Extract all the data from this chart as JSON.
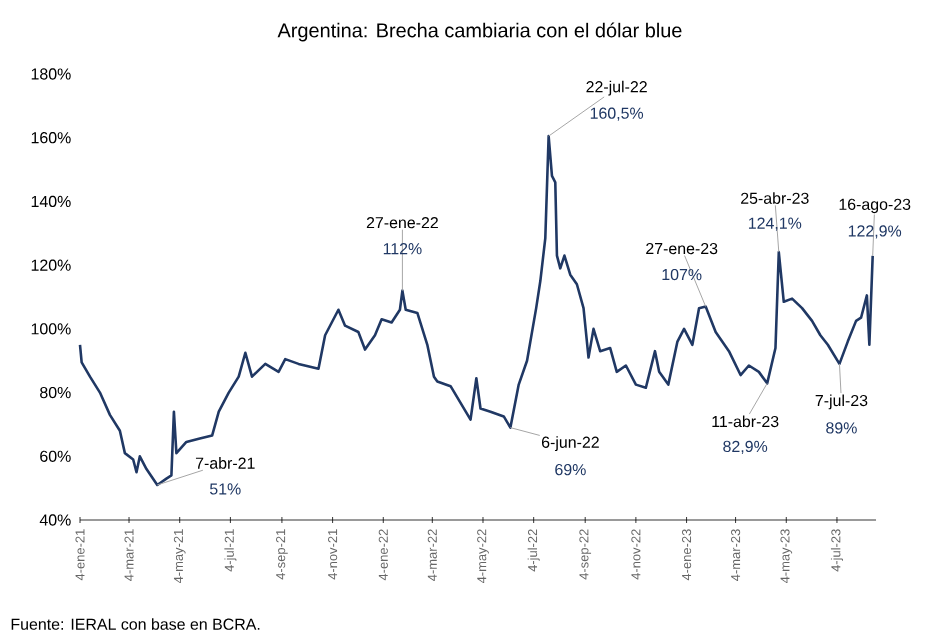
{
  "chart_data": {
    "type": "line",
    "title": "Argentina: Brecha cambiaria con el dólar blue",
    "series": [
      {
        "color": "#203864",
        "x": [
          "2021-01-04",
          "2021-01-06",
          "2021-01-16",
          "2021-01-28",
          "2021-02-09",
          "2021-02-21",
          "2021-02-27",
          "2021-03-09",
          "2021-03-13",
          "2021-03-17",
          "2021-03-25",
          "2021-04-07",
          "2021-04-18",
          "2021-04-24",
          "2021-04-27",
          "2021-04-30",
          "2021-05-12",
          "2021-05-27",
          "2021-06-12",
          "2021-06-20",
          "2021-07-02",
          "2021-07-14",
          "2021-07-22",
          "2021-07-30",
          "2021-08-15",
          "2021-08-31",
          "2021-09-08",
          "2021-09-24",
          "2021-10-18",
          "2021-10-26",
          "2021-11-11",
          "2021-11-19",
          "2021-12-05",
          "2021-12-13",
          "2021-12-25",
          "2022-01-02",
          "2022-01-14",
          "2022-01-24",
          "2022-01-27",
          "2022-01-31",
          "2022-02-14",
          "2022-02-26",
          "2022-03-06",
          "2022-03-10",
          "2022-03-26",
          "2022-04-11",
          "2022-04-19",
          "2022-04-26",
          "2022-05-01",
          "2022-05-13",
          "2022-05-29",
          "2022-06-06",
          "2022-06-16",
          "2022-06-26",
          "2022-07-07",
          "2022-07-12",
          "2022-07-18",
          "2022-07-22",
          "2022-07-26",
          "2022-07-30",
          "2022-08-01",
          "2022-08-05",
          "2022-08-10",
          "2022-08-17",
          "2022-08-25",
          "2022-09-02",
          "2022-09-08",
          "2022-09-14",
          "2022-09-22",
          "2022-10-04",
          "2022-10-12",
          "2022-10-23",
          "2022-11-04",
          "2022-11-16",
          "2022-11-27",
          "2022-12-02",
          "2022-12-13",
          "2022-12-24",
          "2023-01-01",
          "2023-01-11",
          "2023-01-19",
          "2023-01-27",
          "2023-02-08",
          "2023-02-24",
          "2023-03-10",
          "2023-03-20",
          "2023-04-01",
          "2023-04-11",
          "2023-04-21",
          "2023-04-25",
          "2023-05-01",
          "2023-05-11",
          "2023-05-23",
          "2023-06-04",
          "2023-06-14",
          "2023-06-23",
          "2023-07-07",
          "2023-07-17",
          "2023-07-27",
          "2023-08-02",
          "2023-08-09",
          "2023-08-12",
          "2023-08-16"
        ],
        "values": [
          95,
          89.5,
          85,
          80,
          73,
          68,
          61,
          59,
          55,
          60,
          56,
          51,
          53,
          54,
          74,
          61,
          64.5,
          65.5,
          66.5,
          74,
          80,
          85,
          92.5,
          85,
          89,
          86.5,
          90.5,
          89,
          87.5,
          98,
          106,
          101,
          99,
          93.5,
          98,
          103,
          102,
          106,
          112,
          106,
          105,
          95,
          85,
          83.5,
          82,
          75,
          71.5,
          84.5,
          75,
          74,
          72.5,
          69,
          82.5,
          90,
          106.5,
          115,
          128.5,
          160.5,
          148,
          146,
          123,
          119,
          123,
          117,
          114,
          106.5,
          91,
          100,
          93,
          94,
          86.5,
          88.5,
          82.5,
          81.5,
          93,
          86.5,
          82.5,
          96,
          100,
          95,
          106.5,
          107,
          99,
          93,
          85.5,
          88.5,
          86.5,
          82.9,
          94,
          124.1,
          108.5,
          109.5,
          106.5,
          102.5,
          98,
          95,
          89,
          96,
          102.5,
          103.5,
          110.5,
          95,
          122.9
        ]
      }
    ],
    "xlim": [
      "2021-01-04",
      "2023-08-20"
    ],
    "xticks": [
      {
        "value": "2021-01-04",
        "label": "4-ene-21"
      },
      {
        "value": "2021-03-04",
        "label": "4-mar-21"
      },
      {
        "value": "2021-05-04",
        "label": "4-may-21"
      },
      {
        "value": "2021-07-04",
        "label": "4-jul-21"
      },
      {
        "value": "2021-09-04",
        "label": "4-sep-21"
      },
      {
        "value": "2021-11-04",
        "label": "4-nov-21"
      },
      {
        "value": "2022-01-04",
        "label": "4-ene-22"
      },
      {
        "value": "2022-03-04",
        "label": "4-mar-22"
      },
      {
        "value": "2022-05-04",
        "label": "4-may-22"
      },
      {
        "value": "2022-07-04",
        "label": "4-jul-22"
      },
      {
        "value": "2022-09-04",
        "label": "4-sep-22"
      },
      {
        "value": "2022-11-04",
        "label": "4-nov-22"
      },
      {
        "value": "2023-01-04",
        "label": "4-ene-23"
      },
      {
        "value": "2023-03-04",
        "label": "4-mar-23"
      },
      {
        "value": "2023-05-04",
        "label": "4-may-23"
      },
      {
        "value": "2023-07-04",
        "label": "4-jul-23"
      }
    ],
    "ylim": [
      40,
      180
    ],
    "yticks": [
      {
        "value": 40,
        "label": "40%"
      },
      {
        "value": 60,
        "label": "60%"
      },
      {
        "value": 80,
        "label": "80%"
      },
      {
        "value": 100,
        "label": "100%"
      },
      {
        "value": 120,
        "label": "120%"
      },
      {
        "value": 140,
        "label": "140%"
      },
      {
        "value": 160,
        "label": "160%"
      },
      {
        "value": 180,
        "label": "180%"
      }
    ],
    "grid": false,
    "annotations": [
      {
        "text": "7-abr-21",
        "x": "2021-04-07",
        "y": 51
      },
      "51%",
      {
        "text": "27-ene-22",
        "x": "2022-01-27",
        "y": 112
      },
      "112%",
      {
        "text": "22-jul-22",
        "x": "2022-07-22",
        "y": 160.5
      },
      "160,5%",
      {
        "text": "6-jun-22",
        "x": "2022-06-06",
        "y": 69
      },
      "69%",
      {
        "text": "27-ene-23",
        "x": "2023-01-27",
        "y": 107
      },
      "107%",
      {
        "text": "11-abr-23",
        "x": "2023-04-11",
        "y": 82.9
      },
      "82,9%",
      {
        "text": "25-abr-23",
        "x": "2023-04-25",
        "y": 124.1
      },
      "124,1%",
      {
        "text": "7-jul-23",
        "x": "2023-07-07",
        "y": 89
      },
      "89%",
      {
        "text": "16-ago-23",
        "x": "2023-08-16",
        "y": 122.9
      },
      "122,9%",
      "Fuente: IERAL con base en BCRA."
    ]
  }
}
